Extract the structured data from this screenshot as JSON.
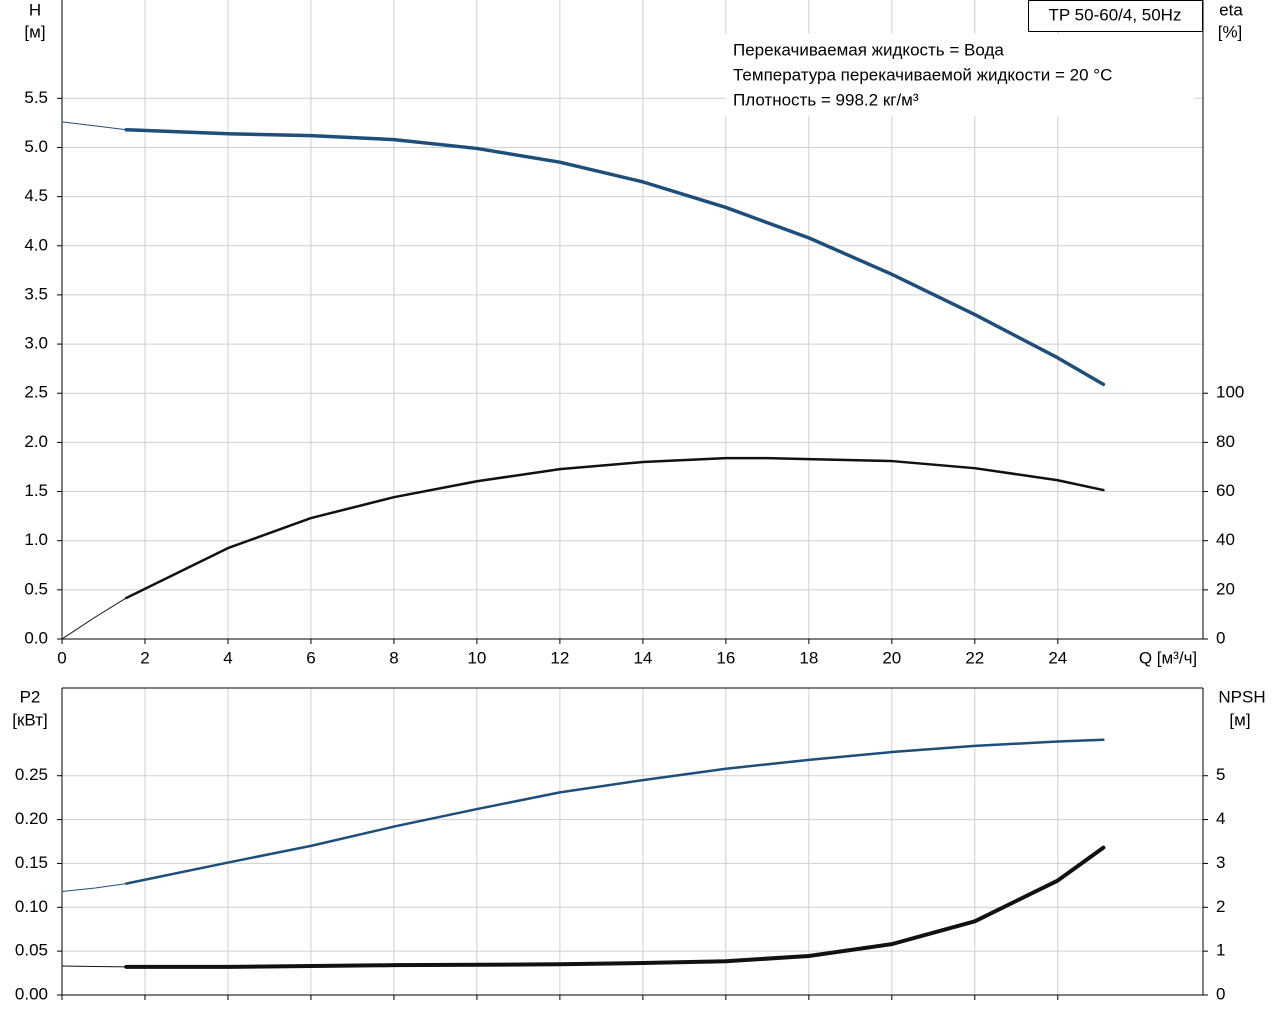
{
  "chart_data": [
    {
      "type": "line",
      "title": "TP 50-60/4, 50Hz",
      "annotations": [
        "Перекачиваемая жидкость = Вода",
        "Температура перекачиваемой жидкости = 20 °C",
        "Плотность = 998.2 кг/м³"
      ],
      "y_label": [
        "H",
        "[м]"
      ],
      "y2_label": [
        "eta",
        "[%]"
      ],
      "x_label": "Q [м³/ч]",
      "xlim": [
        0,
        27.5
      ],
      "xticks": [
        0,
        2,
        4,
        6,
        8,
        10,
        12,
        14,
        16,
        18,
        20,
        22,
        24
      ],
      "xtick_labels": true,
      "ylim": [
        0,
        6.5
      ],
      "yticks": [
        {
          "value": 0,
          "label": "0.0"
        },
        0.5,
        {
          "value": 1,
          "label": "1.0"
        },
        1.5,
        {
          "value": 2,
          "label": "2.0"
        },
        2.5,
        {
          "value": 3,
          "label": "3.0"
        },
        3.5,
        {
          "value": 4,
          "label": "4.0"
        },
        4.5,
        {
          "value": 5,
          "label": "5.0"
        },
        5.5
      ],
      "y2lim": [
        0,
        260
      ],
      "y2ticks": [
        0,
        20,
        40,
        60,
        80,
        100
      ],
      "grid": true,
      "series": [
        {
          "color": "#1f4e7a",
          "width": 1,
          "x": [
            0,
            0.8,
            1.55
          ],
          "values": [
            5.26,
            5.22,
            5.18
          ]
        },
        {
          "color": "#1f4e7a",
          "width": 3.5,
          "x": [
            1.55,
            4,
            6,
            8,
            10,
            12,
            14,
            16,
            18,
            20,
            22,
            24,
            25.1
          ],
          "values": [
            5.18,
            5.14,
            5.12,
            5.08,
            4.99,
            4.85,
            4.65,
            4.39,
            4.08,
            3.71,
            3.3,
            2.86,
            2.59
          ]
        },
        {
          "color": "#111111",
          "width": 1,
          "axis": "y2",
          "x": [
            0,
            0.8,
            1.55
          ],
          "values": [
            0,
            8.9,
            16.7
          ]
        },
        {
          "color": "#111111",
          "width": 2.5,
          "axis": "y2",
          "x": [
            1.55,
            4,
            6,
            8,
            10,
            12,
            14,
            16,
            17,
            18,
            20,
            22,
            24,
            25.1
          ],
          "values": [
            16.7,
            37,
            49.2,
            57.7,
            64.2,
            69.1,
            72,
            73.6,
            73.6,
            73.2,
            72.4,
            69.5,
            64.6,
            60.6
          ]
        }
      ]
    },
    {
      "type": "line",
      "y_label": [
        "P2",
        "[кВт]"
      ],
      "y2_label": [
        "NPSH",
        "[м]"
      ],
      "xlim": [
        0,
        27.5
      ],
      "xticks": [
        0,
        2,
        4,
        6,
        8,
        10,
        12,
        14,
        16,
        18,
        20,
        22,
        24
      ],
      "xtick_labels": false,
      "ylim": [
        0,
        0.35
      ],
      "yticks": [
        {
          "value": 0,
          "label": "0.00"
        },
        {
          "value": 0.05,
          "label": "0.05"
        },
        {
          "value": 0.1,
          "label": "0.10"
        },
        {
          "value": 0.15,
          "label": "0.15"
        },
        {
          "value": 0.2,
          "label": "0.20"
        },
        {
          "value": 0.25,
          "label": "0.25"
        }
      ],
      "y2lim": [
        0,
        7
      ],
      "y2ticks": [
        0,
        1,
        2,
        3,
        4,
        5
      ],
      "grid": true,
      "series": [
        {
          "color": "#1f4e7a",
          "width": 1,
          "x": [
            0,
            0.8,
            1.55
          ],
          "values": [
            0.118,
            0.122,
            0.127
          ]
        },
        {
          "color": "#1f4e7a",
          "width": 2.5,
          "x": [
            1.55,
            4,
            6,
            8,
            10,
            12,
            14,
            16,
            18,
            20,
            22,
            24,
            25.1
          ],
          "values": [
            0.127,
            0.151,
            0.17,
            0.192,
            0.212,
            0.231,
            0.245,
            0.258,
            0.268,
            0.277,
            0.284,
            0.289,
            0.291
          ]
        },
        {
          "color": "#111111",
          "width": 1,
          "axis": "y2",
          "x": [
            0,
            0.8,
            1.55
          ],
          "values": [
            0.66,
            0.65,
            0.64
          ]
        },
        {
          "color": "#111111",
          "width": 4,
          "axis": "y2",
          "x": [
            1.55,
            4,
            8,
            12,
            14,
            16,
            18,
            20,
            22,
            24,
            25.1
          ],
          "values": [
            0.64,
            0.64,
            0.68,
            0.7,
            0.73,
            0.77,
            0.89,
            1.16,
            1.68,
            2.61,
            3.36
          ]
        }
      ]
    }
  ]
}
